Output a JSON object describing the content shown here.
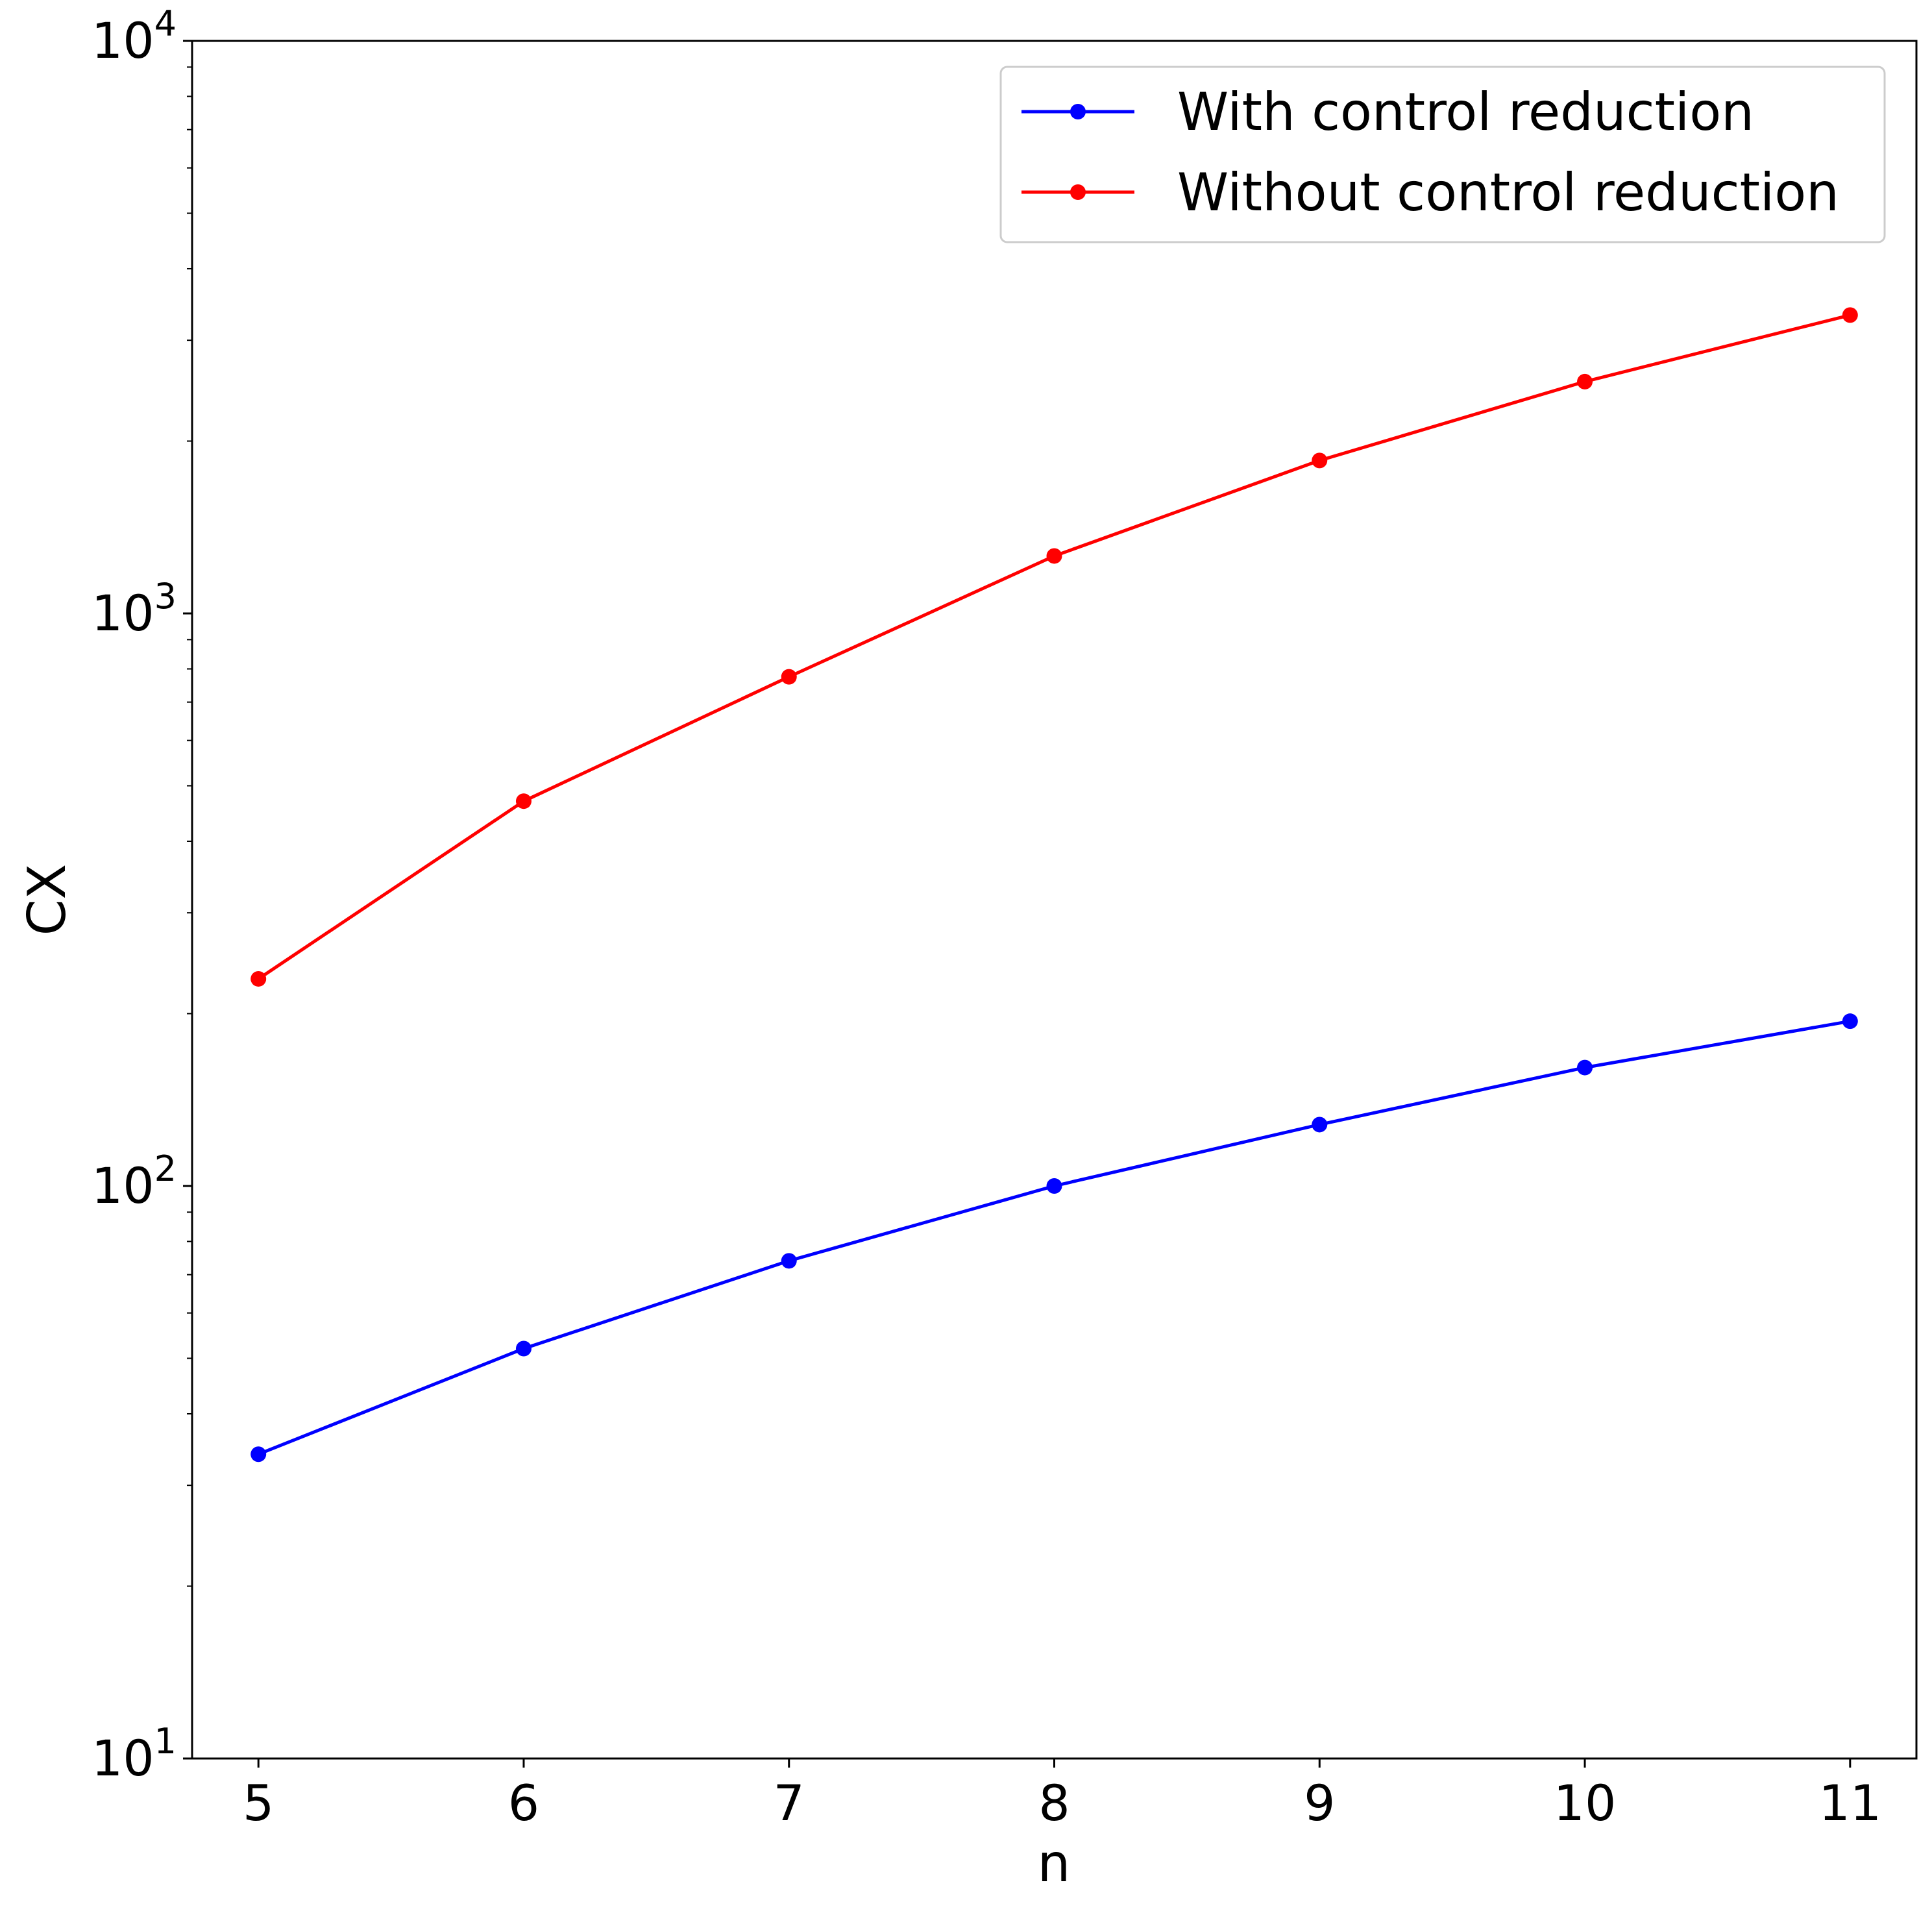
{
  "chart_data": {
    "type": "line",
    "title": "",
    "xlabel": "n",
    "ylabel": "CX",
    "y_scale": "log",
    "xlim": [
      4.75,
      11.25
    ],
    "ylim": [
      10,
      10000
    ],
    "x_ticks": [
      "5",
      "6",
      "7",
      "8",
      "9",
      "10",
      "11"
    ],
    "y_ticks": [
      {
        "value": 10,
        "base": "10",
        "exp": "1"
      },
      {
        "value": 100,
        "base": "10",
        "exp": "2"
      },
      {
        "value": 1000,
        "base": "10",
        "exp": "3"
      },
      {
        "value": 10000,
        "base": "10",
        "exp": "4"
      }
    ],
    "grid": false,
    "legend_position": "top-right",
    "x": [
      5,
      6,
      7,
      8,
      9,
      10,
      11
    ],
    "series": [
      {
        "name": "With control reduction",
        "color": "#0000ff",
        "marker": "circle",
        "values": [
          34,
          52,
          74,
          100,
          128,
          161,
          194
        ]
      },
      {
        "name": "Without control reduction",
        "color": "#ff0000",
        "marker": "circle",
        "values": [
          230,
          470,
          775,
          1260,
          1850,
          2540,
          3320
        ]
      }
    ]
  }
}
